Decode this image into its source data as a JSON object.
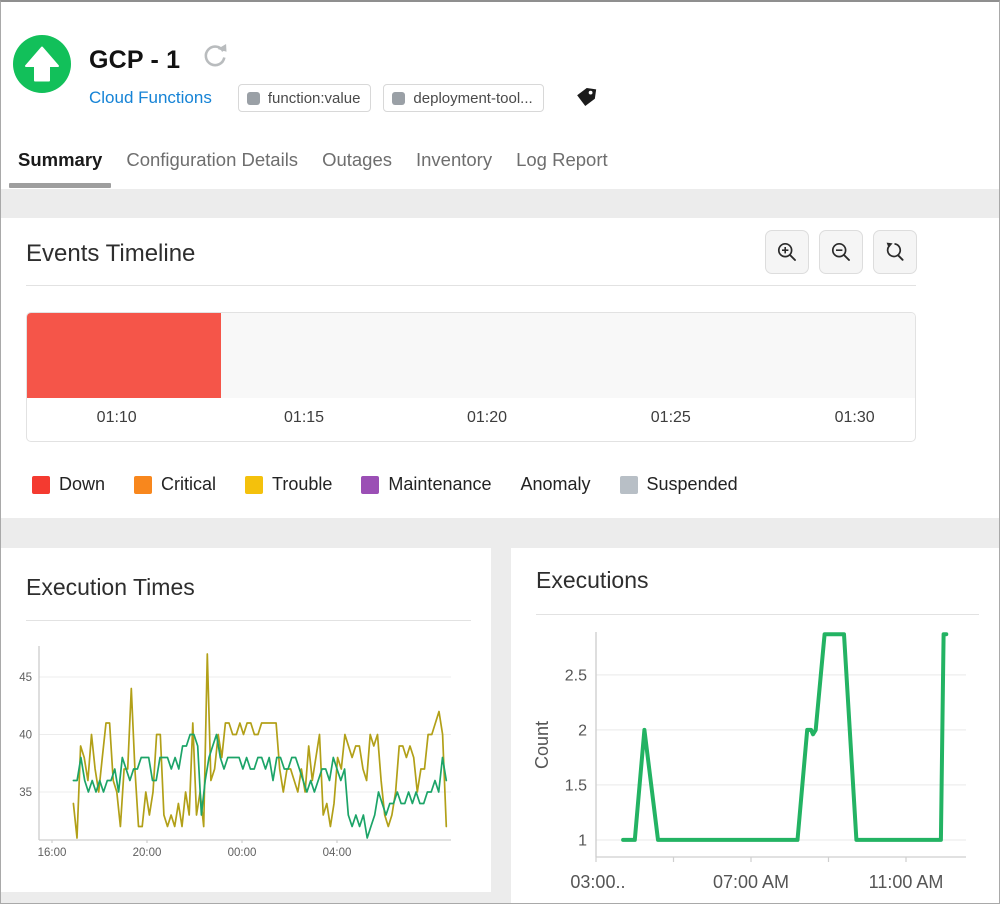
{
  "header": {
    "title": "GCP - 1",
    "status": "up",
    "status_color": "#12c05a",
    "subtitle_link": "Cloud Functions",
    "link_color": "#1583d6",
    "tags": [
      {
        "label": "function:value"
      },
      {
        "label": "deployment-tool..."
      }
    ]
  },
  "tabs": {
    "items": [
      {
        "label": "Summary",
        "active": true
      },
      {
        "label": "Configuration Details",
        "active": false
      },
      {
        "label": "Outages",
        "active": false
      },
      {
        "label": "Inventory",
        "active": false
      },
      {
        "label": "Log Report",
        "active": false
      }
    ]
  },
  "events_timeline": {
    "title": "Events Timeline",
    "toolbar": [
      "zoom-in",
      "zoom-out",
      "zoom-reset"
    ],
    "bar_segments": [
      {
        "status": "Down",
        "color": "#f55549",
        "start_pct": 0,
        "width_pct": 21.8
      }
    ],
    "time_labels": [
      {
        "label": "01:10",
        "pos_pct": 10.1
      },
      {
        "label": "01:15",
        "pos_pct": 31.2
      },
      {
        "label": "01:20",
        "pos_pct": 51.8
      },
      {
        "label": "01:25",
        "pos_pct": 72.5
      },
      {
        "label": "01:30",
        "pos_pct": 93.2
      }
    ],
    "legend": [
      {
        "label": "Down",
        "color": "#f43a30"
      },
      {
        "label": "Critical",
        "color": "#f8871d"
      },
      {
        "label": "Trouble",
        "color": "#f4c10c"
      },
      {
        "label": "Maintenance",
        "color": "#9b4fb5"
      },
      {
        "label": "Anomaly",
        "color": null
      },
      {
        "label": "Suspended",
        "color": "#b8bfc6"
      }
    ]
  },
  "chart_data": [
    {
      "id": "execution_times",
      "type": "line",
      "title": "Execution Times",
      "xlabel": "",
      "ylabel": "",
      "grid": true,
      "ylim": [
        30.83,
        47.7
      ],
      "yticks": [
        35,
        40,
        45
      ],
      "xticks": [
        {
          "h": 0,
          "label": "16:00"
        },
        {
          "h": 4,
          "label": "20:00"
        },
        {
          "h": 8,
          "label": "00:00"
        },
        {
          "h": 12,
          "label": "04:00"
        }
      ],
      "x_axis_note": "hours after 16:00",
      "series": [
        {
          "name": "execution-time-a",
          "color": "#b2a018",
          "x_start_h": 0.9,
          "x_end_h": 16.6,
          "values": [
            34,
            31,
            39,
            38,
            36,
            40,
            37,
            35,
            38,
            41,
            41,
            36,
            35,
            32,
            37,
            37,
            44,
            37,
            32,
            32,
            35,
            33,
            35,
            40,
            40,
            33,
            32,
            33,
            32,
            34,
            32,
            35,
            33,
            41,
            33,
            35,
            32,
            47,
            36,
            37,
            40,
            38,
            41,
            41,
            40,
            40,
            41,
            40,
            41,
            41,
            40,
            40,
            41,
            41,
            41,
            41,
            41,
            37,
            35,
            37,
            37,
            36,
            35,
            37,
            35,
            39,
            36,
            38,
            40,
            33,
            34,
            32,
            34,
            38,
            37,
            40,
            39,
            38,
            39,
            39,
            37,
            36,
            40,
            39,
            40,
            36,
            33,
            32,
            33,
            35,
            39,
            39,
            38,
            39,
            38,
            35,
            37,
            37,
            40,
            40,
            41,
            42,
            40,
            32
          ]
        },
        {
          "name": "execution-time-b",
          "color": "#1ca468",
          "x_start_h": 0.9,
          "x_end_h": 16.6,
          "values": [
            36,
            36,
            38,
            36,
            35,
            36,
            35,
            36,
            35,
            36,
            36,
            37,
            35,
            38,
            37,
            36,
            37,
            37,
            38,
            38,
            38,
            36,
            36,
            38,
            38,
            38,
            37,
            38,
            37,
            39,
            39,
            40,
            40,
            39,
            33,
            36,
            38,
            39,
            40,
            38,
            37,
            38,
            38,
            38,
            38,
            37,
            38,
            37,
            37,
            38,
            38,
            37,
            38,
            36,
            38,
            38,
            37,
            37,
            38,
            38,
            37,
            36,
            35,
            36,
            35,
            36,
            37,
            37,
            36,
            38,
            37,
            36,
            37,
            33,
            32,
            33,
            32,
            33,
            31,
            32,
            33,
            35,
            34,
            33,
            34,
            34,
            35,
            34,
            34,
            35,
            34,
            35,
            34,
            34,
            35,
            35,
            36,
            35,
            38,
            36
          ]
        }
      ]
    },
    {
      "id": "executions",
      "type": "line",
      "title": "Executions",
      "xlabel": "",
      "ylabel": "Count",
      "grid": true,
      "ylim": [
        0.845,
        2.89
      ],
      "yticks": [
        1,
        1.5,
        2,
        2.5
      ],
      "xticks": [
        {
          "h": 3.05,
          "label": "03:00.."
        },
        {
          "h": 7,
          "label": "07:00 AM"
        },
        {
          "h": 11,
          "label": "11:00 AM"
        }
      ],
      "x_axis_note": "hours, 03:00 AM - 12:30 PM",
      "series": [
        {
          "name": "executions-count",
          "color": "#23b363",
          "width": 4,
          "points": [
            [
              3.7,
              1
            ],
            [
              4.0,
              1
            ],
            [
              4.25,
              2
            ],
            [
              4.6,
              1
            ],
            [
              8.2,
              1
            ],
            [
              8.45,
              2
            ],
            [
              8.55,
              2
            ],
            [
              8.6,
              1.96
            ],
            [
              8.67,
              2
            ],
            [
              8.9,
              2.87
            ],
            [
              9.4,
              2.87
            ],
            [
              9.72,
              1
            ],
            [
              11.9,
              1
            ],
            [
              11.97,
              2.87
            ],
            [
              12.04,
              2.87
            ]
          ]
        }
      ]
    }
  ]
}
